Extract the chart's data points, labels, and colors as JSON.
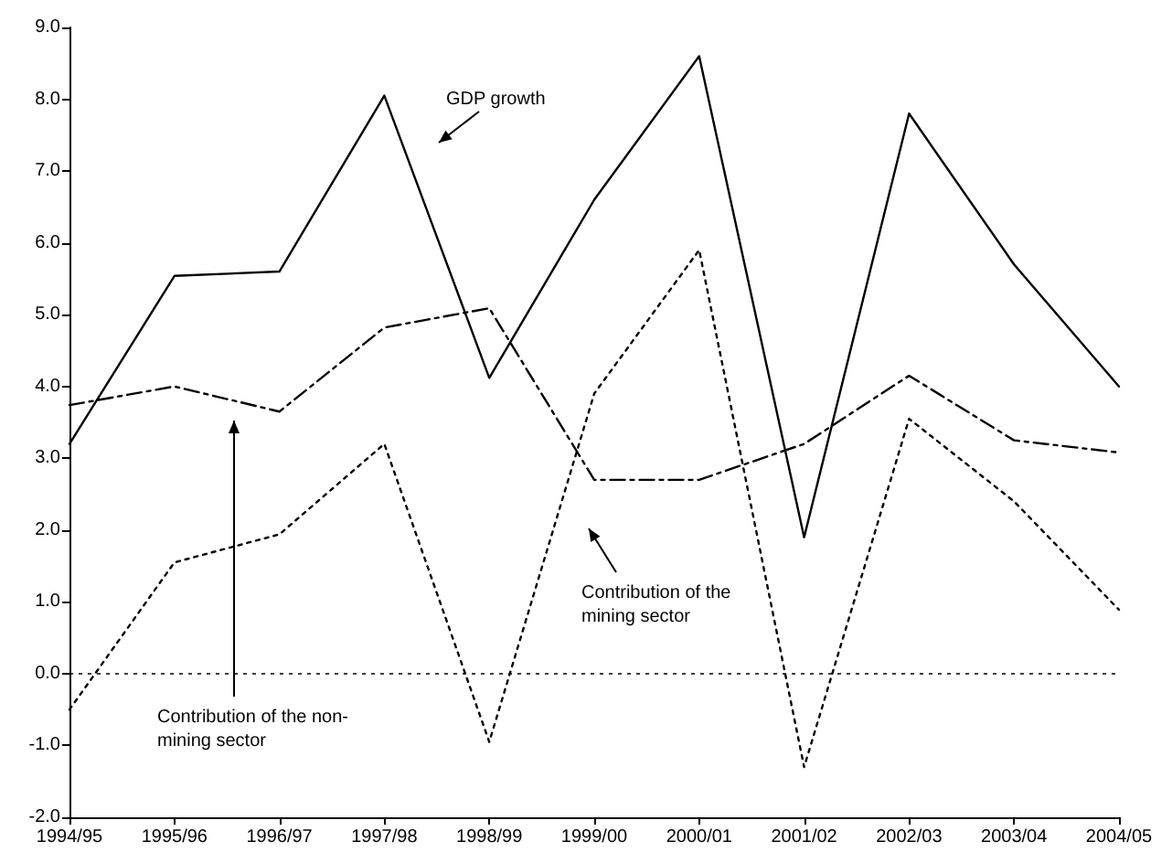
{
  "chart_data": {
    "type": "line",
    "categories": [
      "1994/95",
      "1995/96",
      "1996/97",
      "1997/98",
      "1998/99",
      "1999/00",
      "2000/01",
      "2001/02",
      "2002/03",
      "2003/04",
      "2004/05"
    ],
    "series": [
      {
        "color": "#000000",
        "line_style": "solid",
        "values": [
          3.2,
          5.54,
          5.6,
          8.05,
          4.12,
          6.6,
          8.6,
          1.9,
          7.8,
          5.7,
          4.0
        ]
      },
      {
        "color": "#000000",
        "line_style": "dashdot",
        "values": [
          3.74,
          4.0,
          3.65,
          4.82,
          5.09,
          2.7,
          2.7,
          3.2,
          4.15,
          3.25,
          3.08
        ]
      },
      {
        "color": "#000000",
        "line_style": "dotted",
        "values": [
          -0.5,
          1.55,
          1.94,
          3.2,
          -0.95,
          3.9,
          5.9,
          -1.3,
          3.55,
          2.4,
          0.89
        ]
      }
    ],
    "ylim": [
      -2,
      9
    ],
    "yticks": [
      {
        "value": -2,
        "label": "-2.0"
      },
      {
        "value": -1,
        "label": "-1.0"
      },
      {
        "value": 0,
        "label": "0.0"
      },
      {
        "value": 1,
        "label": "1.0"
      },
      {
        "value": 2,
        "label": "2.0"
      },
      {
        "value": 3,
        "label": "3.0"
      },
      {
        "value": 4,
        "label": "4.0"
      },
      {
        "value": 5,
        "label": "5.0"
      },
      {
        "value": 6,
        "label": "6.0"
      },
      {
        "value": 7,
        "label": "7.0"
      },
      {
        "value": 8,
        "label": "8.0"
      },
      {
        "value": 9,
        "label": "9.0"
      }
    ],
    "ref_lines": [
      {
        "axis": "y",
        "value": 0,
        "color": "#000000",
        "line_style": "dotted"
      }
    ],
    "annotations": [
      "GDP growth",
      "Contribution of the non-\nmining sector",
      "Contribution of the\nmining sector"
    ],
    "grid": false,
    "marker": "none"
  }
}
